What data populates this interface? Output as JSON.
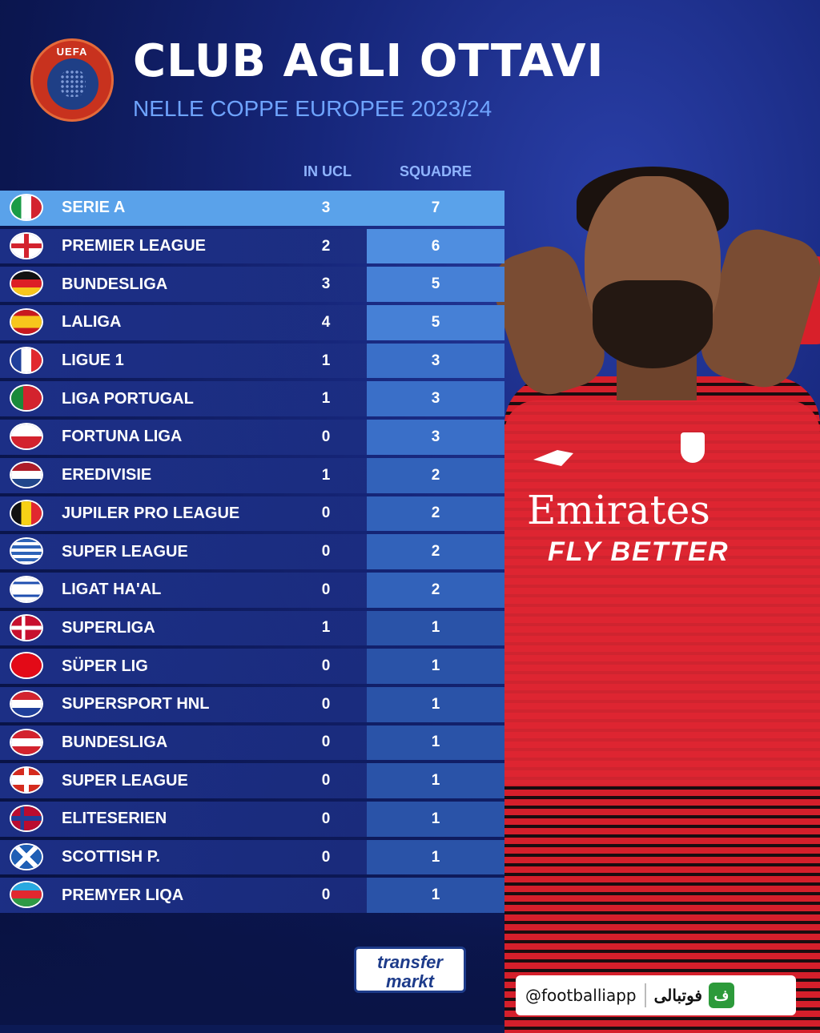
{
  "header": {
    "logo_text": "UEFA",
    "title": "CLUB AGLI OTTAVI",
    "subtitle": "NELLE COPPE EUROPEE 2023/24"
  },
  "columns": {
    "ucl": "IN UCL",
    "squadre": "SQUADRE"
  },
  "rows": [
    {
      "league": "SERIE A",
      "ucl": "3",
      "squadre": "7",
      "flag": "italy-flag"
    },
    {
      "league": "PREMIER LEAGUE",
      "ucl": "2",
      "squadre": "6",
      "flag": "england-flag"
    },
    {
      "league": "BUNDESLIGA",
      "ucl": "3",
      "squadre": "5",
      "flag": "germany-flag"
    },
    {
      "league": "LALIGA",
      "ucl": "4",
      "squadre": "5",
      "flag": "spain-flag"
    },
    {
      "league": "LIGUE 1",
      "ucl": "1",
      "squadre": "3",
      "flag": "france-flag"
    },
    {
      "league": "LIGA PORTUGAL",
      "ucl": "1",
      "squadre": "3",
      "flag": "portugal-flag"
    },
    {
      "league": "FORTUNA LIGA",
      "ucl": "0",
      "squadre": "3",
      "flag": "czechia-flag"
    },
    {
      "league": "EREDIVISIE",
      "ucl": "1",
      "squadre": "2",
      "flag": "netherlands-flag"
    },
    {
      "league": "JUPILER PRO LEAGUE",
      "ucl": "0",
      "squadre": "2",
      "flag": "belgium-flag"
    },
    {
      "league": "SUPER LEAGUE",
      "ucl": "0",
      "squadre": "2",
      "flag": "greece-flag"
    },
    {
      "league": "LIGAT HA'AL",
      "ucl": "0",
      "squadre": "2",
      "flag": "israel-flag"
    },
    {
      "league": "SUPERLIGA",
      "ucl": "1",
      "squadre": "1",
      "flag": "denmark-flag"
    },
    {
      "league": "SÜPER LIG",
      "ucl": "0",
      "squadre": "1",
      "flag": "turkey-flag"
    },
    {
      "league": "SUPERSPORT HNL",
      "ucl": "0",
      "squadre": "1",
      "flag": "croatia-flag"
    },
    {
      "league": "BUNDESLIGA",
      "ucl": "0",
      "squadre": "1",
      "flag": "austria-flag"
    },
    {
      "league": "SUPER LEAGUE",
      "ucl": "0",
      "squadre": "1",
      "flag": "switzerland-flag"
    },
    {
      "league": "ELITESERIEN",
      "ucl": "0",
      "squadre": "1",
      "flag": "norway-flag"
    },
    {
      "league": "SCOTTISH P.",
      "ucl": "0",
      "squadre": "1",
      "flag": "scotland-flag"
    },
    {
      "league": "PREMYER LIQA",
      "ucl": "0",
      "squadre": "1",
      "flag": "azerbaijan-flag"
    }
  ],
  "jersey": {
    "sponsor": "Emirates",
    "tagline": "FLY BETTER"
  },
  "footer": {
    "transfermarkt_line1": "transfer",
    "transfermarkt_line2": "markt",
    "handle": "@footballiapp",
    "brand": "فوتبالی",
    "app_icon_glyph": "ف"
  },
  "colors": {
    "highlight_row": "#5aa2ea",
    "title": "#ffffff",
    "subtitle": "#6fa4ff",
    "background": "#0c1a55"
  }
}
